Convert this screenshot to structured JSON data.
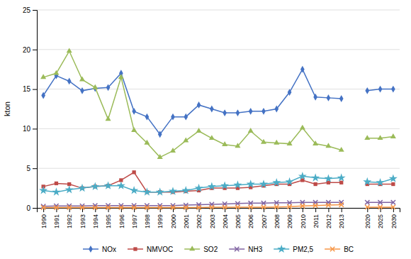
{
  "chart_data": {
    "type": "line",
    "y_label": "kton",
    "categories": [
      "1990",
      "1991",
      "1992",
      "1993",
      "1994",
      "1995",
      "1996",
      "1997",
      "1998",
      "1999",
      "2000",
      "2001",
      "2002",
      "2003",
      "2004",
      "2005",
      "2006",
      "2007",
      "2008",
      "2009",
      "2010",
      "2011",
      "2012",
      "2013",
      null,
      "2020",
      "2025",
      "2030"
    ],
    "series": [
      {
        "name": "NOx",
        "color": "#4472C4",
        "marker": "diamond",
        "values": [
          14.2,
          16.7,
          16.0,
          14.8,
          15.1,
          15.2,
          17.0,
          12.2,
          11.5,
          9.3,
          11.5,
          11.5,
          13.0,
          12.5,
          12.0,
          12.0,
          12.2,
          12.2,
          12.5,
          14.6,
          17.5,
          14.0,
          13.9,
          13.8,
          null,
          14.8,
          15.0,
          15.0
        ]
      },
      {
        "name": "NMVOC",
        "color": "#BE4B48",
        "marker": "square",
        "values": [
          2.7,
          3.1,
          3.0,
          2.5,
          2.7,
          2.8,
          3.5,
          4.5,
          2.0,
          2.0,
          2.0,
          2.1,
          2.2,
          2.5,
          2.5,
          2.5,
          2.6,
          2.8,
          3.0,
          3.0,
          3.5,
          3.0,
          3.2,
          3.2,
          null,
          3.0,
          3.0,
          3.0
        ]
      },
      {
        "name": "SO2",
        "color": "#9BBB59",
        "marker": "triangle",
        "values": [
          16.5,
          17.0,
          19.8,
          16.2,
          15.2,
          11.2,
          16.5,
          9.8,
          8.2,
          6.4,
          7.2,
          8.5,
          9.7,
          8.8,
          8.0,
          7.8,
          9.7,
          8.3,
          8.2,
          8.1,
          10.1,
          8.1,
          7.8,
          7.3,
          null,
          8.8,
          8.8,
          9.0
        ]
      },
      {
        "name": "NH3",
        "color": "#8064A2",
        "marker": "x",
        "values": [
          0.2,
          0.25,
          0.25,
          0.25,
          0.3,
          0.3,
          0.3,
          0.3,
          0.3,
          0.3,
          0.3,
          0.35,
          0.4,
          0.45,
          0.5,
          0.55,
          0.6,
          0.6,
          0.65,
          0.65,
          0.7,
          0.7,
          0.7,
          0.7,
          null,
          0.7,
          0.7,
          0.7
        ]
      },
      {
        "name": "PM2,5",
        "color": "#4BACC6",
        "marker": "star",
        "values": [
          2.2,
          2.0,
          2.3,
          2.5,
          2.7,
          2.8,
          2.8,
          2.2,
          2.0,
          2.0,
          2.1,
          2.2,
          2.5,
          2.7,
          2.8,
          2.9,
          3.0,
          3.0,
          3.2,
          3.3,
          4.0,
          3.8,
          3.7,
          3.8,
          null,
          3.3,
          3.2,
          3.7
        ]
      },
      {
        "name": "BC",
        "color": "#F79646",
        "marker": "x",
        "values": [
          0.05,
          0.05,
          0.05,
          0.05,
          0.05,
          0.05,
          0.05,
          0.05,
          0.05,
          0.05,
          0.05,
          0.05,
          0.05,
          0.08,
          0.08,
          0.1,
          0.1,
          0.1,
          0.12,
          0.15,
          0.25,
          0.3,
          0.35,
          0.4,
          null,
          0.1,
          0.1,
          0.1
        ]
      }
    ],
    "ylim": [
      0,
      25
    ],
    "yticks": [
      0,
      5,
      10,
      15,
      20,
      25
    ],
    "grid": true,
    "legend": "bottom"
  }
}
